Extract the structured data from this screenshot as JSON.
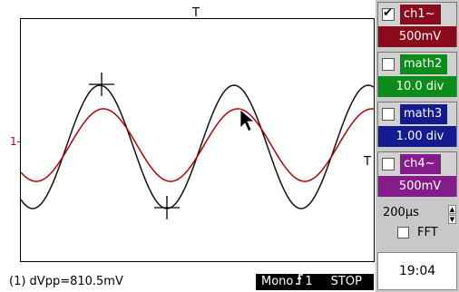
{
  "scope": {
    "top_trigger_glyph": "T",
    "right_trigger_glyph": "T",
    "ref_marker": "1-",
    "trace_color_ch1": "#b30000",
    "trace_color_ref": "#111111",
    "cursor_color": "#000000",
    "grid_border_color": "#000000"
  },
  "status": {
    "measurement": "(1)  dVpp=810.5mV",
    "mode": "Mono",
    "trigger_icon": "trigger-edge-icon",
    "trigger_source": "1",
    "run_state": "STOP"
  },
  "panel": {
    "channels": [
      {
        "name": "ch1~",
        "scale": "500mV",
        "checked": true,
        "color": "#8b0a1c"
      },
      {
        "name": "math2",
        "scale": "10.0 div",
        "checked": false,
        "color": "#0c8c1a"
      },
      {
        "name": "math3",
        "scale": "1.00 div",
        "checked": false,
        "color": "#141b8f"
      },
      {
        "name": "ch4~",
        "scale": "500mV",
        "checked": false,
        "color": "#861b8b"
      }
    ],
    "timebase": "200µs",
    "fft_label": "FFT",
    "fft_checked": false,
    "clock": "19:04"
  }
}
